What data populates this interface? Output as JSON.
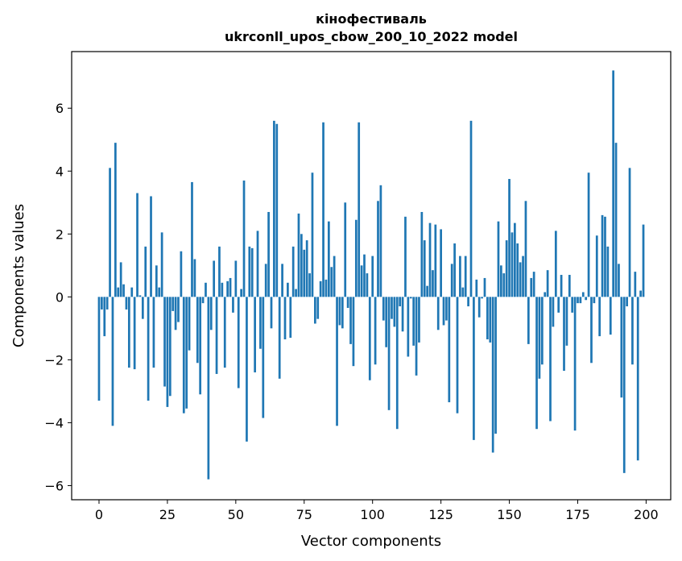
{
  "chart_data": {
    "type": "bar",
    "title": "кінофестиваль",
    "subtitle": "ukrconll_upos_cbow_200_10_2022 model",
    "xlabel": "Vector components",
    "ylabel": "Components values",
    "bar_color": "#1f77b4",
    "xlim": [
      -10,
      209
    ],
    "ylim": [
      -6.45,
      7.8
    ],
    "xticks": [
      0,
      25,
      50,
      75,
      100,
      125,
      150,
      175,
      200
    ],
    "yticks": [
      -6,
      -4,
      -2,
      0,
      2,
      4,
      6
    ],
    "grid": false,
    "values": [
      -3.3,
      -0.4,
      -1.25,
      -0.4,
      4.1,
      -4.1,
      4.9,
      0.3,
      1.1,
      0.4,
      -0.4,
      -2.25,
      0.3,
      -2.3,
      3.3,
      0.05,
      -0.7,
      1.6,
      -3.3,
      3.2,
      -2.25,
      1.0,
      0.3,
      2.05,
      -2.85,
      -3.5,
      -3.15,
      -0.45,
      -1.05,
      -0.8,
      1.45,
      -3.7,
      -3.55,
      -1.7,
      3.65,
      1.2,
      -2.1,
      -3.1,
      -0.2,
      0.45,
      -5.8,
      -1.05,
      1.15,
      -2.45,
      1.6,
      0.45,
      -2.25,
      0.5,
      0.6,
      -0.5,
      1.15,
      -2.9,
      0.25,
      3.7,
      -4.6,
      1.6,
      1.55,
      -2.4,
      2.1,
      -1.65,
      -3.85,
      1.05,
      2.7,
      -1.0,
      5.6,
      5.5,
      -2.6,
      1.05,
      -1.35,
      0.45,
      -1.3,
      1.6,
      0.25,
      2.65,
      2.0,
      1.5,
      1.8,
      0.75,
      3.95,
      -0.85,
      -0.7,
      0.5,
      5.55,
      0.55,
      2.4,
      0.95,
      1.3,
      -4.1,
      -0.9,
      -1.0,
      3.0,
      -0.35,
      -1.5,
      -2.2,
      2.45,
      5.55,
      1.0,
      1.35,
      0.75,
      -2.65,
      1.3,
      -2.15,
      3.05,
      3.55,
      -0.75,
      -1.6,
      -3.6,
      -0.7,
      -0.95,
      -4.2,
      -0.3,
      -1.1,
      2.55,
      -1.9,
      -0.05,
      -1.55,
      -2.5,
      -1.45,
      2.7,
      1.8,
      0.35,
      2.35,
      0.85,
      2.3,
      -1.05,
      2.15,
      -0.9,
      -0.75,
      -3.35,
      1.05,
      1.7,
      -3.7,
      1.3,
      0.3,
      1.3,
      -0.3,
      5.6,
      -4.55,
      0.55,
      -0.65,
      -0.05,
      0.6,
      -1.35,
      -1.45,
      -4.95,
      -4.35,
      2.4,
      1.0,
      0.75,
      1.8,
      3.75,
      2.05,
      2.35,
      1.7,
      1.1,
      1.3,
      3.05,
      -1.5,
      0.6,
      0.8,
      -4.2,
      -2.6,
      -2.15,
      0.15,
      0.85,
      -3.95,
      -0.95,
      2.1,
      -0.5,
      0.7,
      -2.35,
      -1.55,
      0.7,
      -0.5,
      -4.25,
      -0.2,
      -0.2,
      0.15,
      -0.1,
      3.95,
      -2.1,
      -0.2,
      1.95,
      -1.25,
      2.6,
      2.55,
      1.6,
      -1.2,
      7.2,
      4.9,
      1.05,
      -3.2,
      -5.6,
      -0.3,
      4.1,
      -2.15,
      0.8,
      -5.2,
      0.2,
      2.3
    ]
  }
}
